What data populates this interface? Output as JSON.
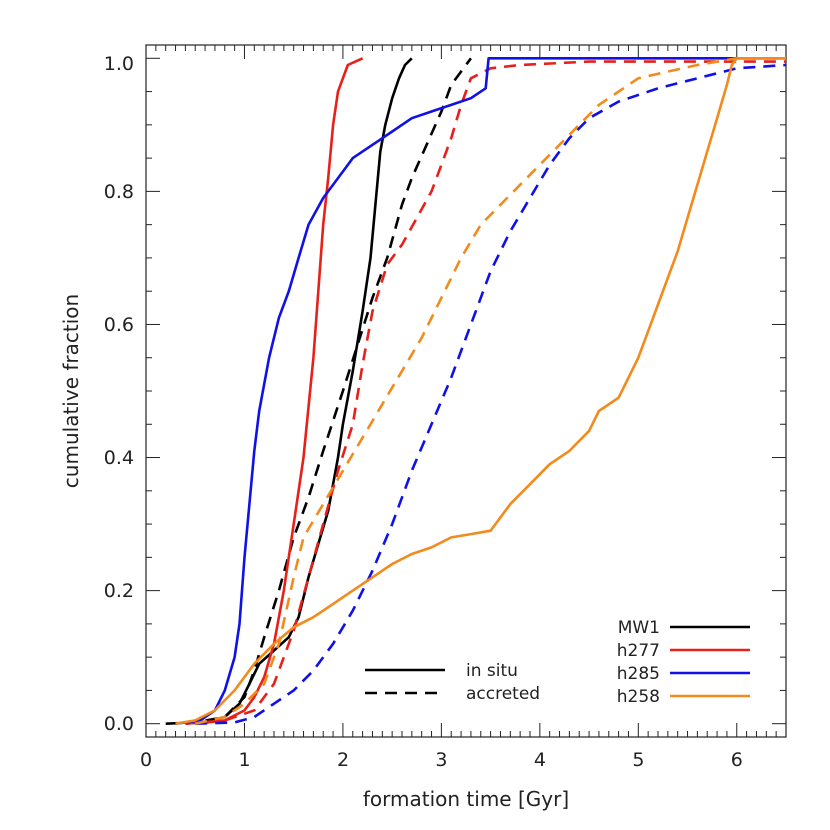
{
  "chart_data": {
    "type": "line",
    "xlabel": "formation time [Gyr]",
    "ylabel": "cumulative fraction",
    "xlim": [
      0,
      6.5
    ],
    "ylim": [
      -0.02,
      1.02
    ],
    "x_ticks": [
      "0",
      "1",
      "2",
      "3",
      "4",
      "5",
      "6"
    ],
    "y_ticks": [
      "0.0",
      "0.2",
      "0.4",
      "0.6",
      "0.8",
      "1.0"
    ],
    "grid": false,
    "style_legend": [
      {
        "label": "in situ",
        "dash": "solid"
      },
      {
        "label": "accreted",
        "dash": "dashed"
      }
    ],
    "halo_legend": [
      {
        "label": "MW1",
        "color": "#000000"
      },
      {
        "label": "h277",
        "color": "#e8201a"
      },
      {
        "label": "h285",
        "color": "#1010e8"
      },
      {
        "label": "h258",
        "color": "#f28a1c"
      }
    ],
    "series": [
      {
        "halo": "MW1",
        "kind": "in situ",
        "color": "#000000",
        "dash": "solid",
        "points": [
          [
            0.4,
            0.0
          ],
          [
            0.6,
            0.003
          ],
          [
            0.8,
            0.01
          ],
          [
            0.95,
            0.03
          ],
          [
            1.05,
            0.06
          ],
          [
            1.15,
            0.09
          ],
          [
            1.3,
            0.11
          ],
          [
            1.45,
            0.13
          ],
          [
            1.55,
            0.16
          ],
          [
            1.65,
            0.22
          ],
          [
            1.75,
            0.27
          ],
          [
            1.85,
            0.32
          ],
          [
            1.95,
            0.4
          ],
          [
            2.0,
            0.45
          ],
          [
            2.1,
            0.53
          ],
          [
            2.2,
            0.62
          ],
          [
            2.28,
            0.7
          ],
          [
            2.33,
            0.78
          ],
          [
            2.38,
            0.86
          ],
          [
            2.43,
            0.9
          ],
          [
            2.5,
            0.94
          ],
          [
            2.57,
            0.97
          ],
          [
            2.63,
            0.99
          ],
          [
            2.7,
            1.0
          ]
        ]
      },
      {
        "halo": "MW1",
        "kind": "accreted",
        "color": "#000000",
        "dash": "dashed",
        "points": [
          [
            0.2,
            0.0
          ],
          [
            0.5,
            0.002
          ],
          [
            0.8,
            0.01
          ],
          [
            1.0,
            0.04
          ],
          [
            1.1,
            0.08
          ],
          [
            1.2,
            0.13
          ],
          [
            1.35,
            0.2
          ],
          [
            1.5,
            0.28
          ],
          [
            1.65,
            0.34
          ],
          [
            1.8,
            0.41
          ],
          [
            2.0,
            0.5
          ],
          [
            2.15,
            0.57
          ],
          [
            2.3,
            0.64
          ],
          [
            2.45,
            0.7
          ],
          [
            2.6,
            0.78
          ],
          [
            2.7,
            0.82
          ],
          [
            2.85,
            0.87
          ],
          [
            3.0,
            0.92
          ],
          [
            3.1,
            0.96
          ],
          [
            3.3,
            1.0
          ]
        ]
      },
      {
        "halo": "h277",
        "kind": "in situ",
        "color": "#e8201a",
        "dash": "solid",
        "points": [
          [
            0.5,
            0.0
          ],
          [
            0.8,
            0.005
          ],
          [
            1.0,
            0.02
          ],
          [
            1.1,
            0.04
          ],
          [
            1.2,
            0.07
          ],
          [
            1.3,
            0.12
          ],
          [
            1.4,
            0.2
          ],
          [
            1.5,
            0.3
          ],
          [
            1.6,
            0.4
          ],
          [
            1.7,
            0.55
          ],
          [
            1.75,
            0.65
          ],
          [
            1.8,
            0.75
          ],
          [
            1.85,
            0.82
          ],
          [
            1.9,
            0.9
          ],
          [
            1.95,
            0.95
          ],
          [
            2.05,
            0.99
          ],
          [
            2.2,
            1.0
          ]
        ]
      },
      {
        "halo": "h277",
        "kind": "accreted",
        "color": "#e8201a",
        "dash": "dashed",
        "points": [
          [
            0.4,
            0.0
          ],
          [
            0.8,
            0.005
          ],
          [
            1.1,
            0.02
          ],
          [
            1.3,
            0.06
          ],
          [
            1.5,
            0.14
          ],
          [
            1.65,
            0.22
          ],
          [
            1.8,
            0.3
          ],
          [
            1.95,
            0.38
          ],
          [
            2.1,
            0.45
          ],
          [
            2.2,
            0.54
          ],
          [
            2.3,
            0.62
          ],
          [
            2.45,
            0.69
          ],
          [
            2.6,
            0.72
          ],
          [
            2.75,
            0.76
          ],
          [
            2.9,
            0.8
          ],
          [
            3.0,
            0.84
          ],
          [
            3.1,
            0.88
          ],
          [
            3.2,
            0.93
          ],
          [
            3.3,
            0.97
          ],
          [
            3.5,
            0.985
          ],
          [
            3.8,
            0.99
          ],
          [
            4.5,
            0.995
          ],
          [
            6.5,
            0.995
          ]
        ]
      },
      {
        "halo": "h285",
        "kind": "in situ",
        "color": "#1010e8",
        "dash": "solid",
        "points": [
          [
            0.3,
            0.0
          ],
          [
            0.55,
            0.005
          ],
          [
            0.7,
            0.02
          ],
          [
            0.8,
            0.05
          ],
          [
            0.9,
            0.1
          ],
          [
            0.95,
            0.15
          ],
          [
            1.0,
            0.25
          ],
          [
            1.05,
            0.33
          ],
          [
            1.1,
            0.41
          ],
          [
            1.15,
            0.47
          ],
          [
            1.25,
            0.55
          ],
          [
            1.35,
            0.61
          ],
          [
            1.45,
            0.65
          ],
          [
            1.55,
            0.7
          ],
          [
            1.65,
            0.75
          ],
          [
            1.8,
            0.79
          ],
          [
            1.95,
            0.82
          ],
          [
            2.1,
            0.85
          ],
          [
            2.3,
            0.87
          ],
          [
            2.5,
            0.89
          ],
          [
            2.7,
            0.91
          ],
          [
            2.9,
            0.92
          ],
          [
            3.1,
            0.93
          ],
          [
            3.3,
            0.94
          ],
          [
            3.45,
            0.955
          ],
          [
            3.48,
            1.0
          ],
          [
            3.55,
            1.0
          ],
          [
            6.5,
            1.0
          ]
        ]
      },
      {
        "halo": "h285",
        "kind": "accreted",
        "color": "#1010e8",
        "dash": "dashed",
        "points": [
          [
            0.5,
            0.0
          ],
          [
            0.9,
            0.002
          ],
          [
            1.1,
            0.01
          ],
          [
            1.3,
            0.03
          ],
          [
            1.5,
            0.05
          ],
          [
            1.7,
            0.08
          ],
          [
            1.9,
            0.12
          ],
          [
            2.1,
            0.17
          ],
          [
            2.3,
            0.23
          ],
          [
            2.5,
            0.3
          ],
          [
            2.7,
            0.38
          ],
          [
            2.9,
            0.45
          ],
          [
            3.1,
            0.52
          ],
          [
            3.3,
            0.6
          ],
          [
            3.5,
            0.68
          ],
          [
            3.7,
            0.74
          ],
          [
            3.9,
            0.79
          ],
          [
            4.1,
            0.84
          ],
          [
            4.3,
            0.88
          ],
          [
            4.5,
            0.91
          ],
          [
            4.8,
            0.935
          ],
          [
            5.2,
            0.955
          ],
          [
            5.6,
            0.97
          ],
          [
            6.0,
            0.985
          ],
          [
            6.5,
            0.99
          ]
        ]
      },
      {
        "halo": "h258",
        "kind": "in situ",
        "color": "#f28a1c",
        "dash": "solid",
        "points": [
          [
            0.3,
            0.0
          ],
          [
            0.5,
            0.005
          ],
          [
            0.7,
            0.02
          ],
          [
            0.9,
            0.05
          ],
          [
            1.1,
            0.09
          ],
          [
            1.3,
            0.12
          ],
          [
            1.5,
            0.145
          ],
          [
            1.7,
            0.16
          ],
          [
            1.9,
            0.18
          ],
          [
            2.1,
            0.2
          ],
          [
            2.3,
            0.22
          ],
          [
            2.5,
            0.24
          ],
          [
            2.7,
            0.255
          ],
          [
            2.9,
            0.265
          ],
          [
            3.1,
            0.28
          ],
          [
            3.3,
            0.285
          ],
          [
            3.5,
            0.29
          ],
          [
            3.55,
            0.3
          ],
          [
            3.7,
            0.33
          ],
          [
            3.9,
            0.36
          ],
          [
            4.1,
            0.39
          ],
          [
            4.3,
            0.41
          ],
          [
            4.5,
            0.44
          ],
          [
            4.6,
            0.47
          ],
          [
            4.8,
            0.49
          ],
          [
            4.9,
            0.52
          ],
          [
            5.0,
            0.55
          ],
          [
            5.1,
            0.59
          ],
          [
            5.2,
            0.63
          ],
          [
            5.3,
            0.67
          ],
          [
            5.4,
            0.71
          ],
          [
            5.5,
            0.76
          ],
          [
            5.6,
            0.81
          ],
          [
            5.7,
            0.86
          ],
          [
            5.8,
            0.91
          ],
          [
            5.9,
            0.96
          ],
          [
            5.95,
            0.99
          ],
          [
            6.0,
            1.0
          ],
          [
            6.5,
            1.0
          ]
        ]
      },
      {
        "halo": "h258",
        "kind": "accreted",
        "color": "#f28a1c",
        "dash": "dashed",
        "points": [
          [
            0.5,
            0.0
          ],
          [
            0.8,
            0.01
          ],
          [
            1.0,
            0.03
          ],
          [
            1.2,
            0.06
          ],
          [
            1.35,
            0.12
          ],
          [
            1.5,
            0.22
          ],
          [
            1.6,
            0.28
          ],
          [
            1.8,
            0.33
          ],
          [
            2.0,
            0.38
          ],
          [
            2.2,
            0.43
          ],
          [
            2.4,
            0.48
          ],
          [
            2.6,
            0.53
          ],
          [
            2.8,
            0.58
          ],
          [
            3.0,
            0.64
          ],
          [
            3.2,
            0.7
          ],
          [
            3.4,
            0.75
          ],
          [
            3.6,
            0.78
          ],
          [
            3.8,
            0.81
          ],
          [
            4.0,
            0.84
          ],
          [
            4.2,
            0.87
          ],
          [
            4.4,
            0.9
          ],
          [
            4.6,
            0.93
          ],
          [
            4.8,
            0.95
          ],
          [
            5.0,
            0.97
          ],
          [
            5.3,
            0.98
          ],
          [
            5.6,
            0.99
          ],
          [
            6.0,
            1.0
          ],
          [
            6.5,
            1.0
          ]
        ]
      }
    ]
  }
}
